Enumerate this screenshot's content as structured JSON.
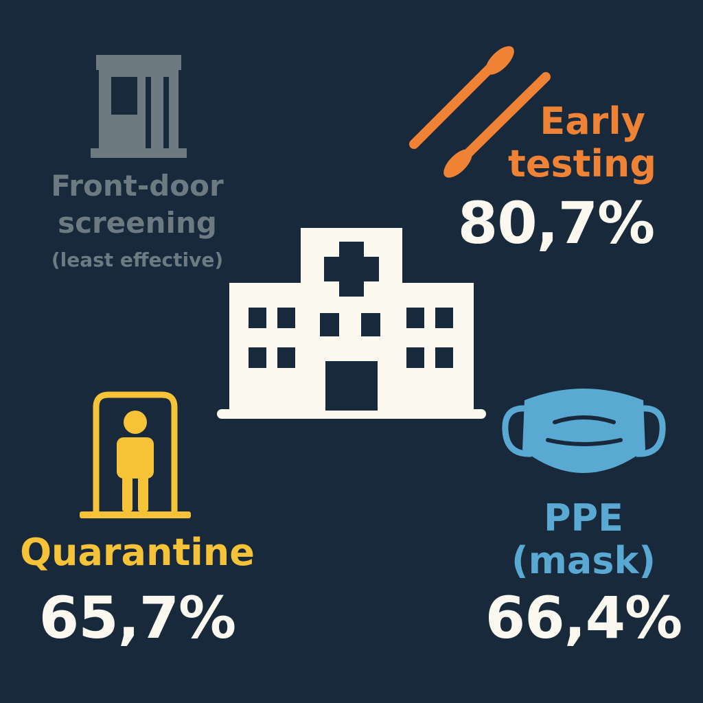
{
  "front_door": {
    "label_line1": "Front-door",
    "label_line2": "screening",
    "note": "(least effective)",
    "icon": "door-icon",
    "color": "#6d7a82"
  },
  "early_testing": {
    "label_line1": "Early",
    "label_line2": "testing",
    "value": "80,7%",
    "icon": "swab-icon",
    "color": "#f08236"
  },
  "quarantine": {
    "label": "Quarantine",
    "value": "65,7%",
    "icon": "quarantine-booth-icon",
    "color": "#f5c238"
  },
  "ppe": {
    "label_line1": "PPE",
    "label_line2": "(mask)",
    "value": "66,4%",
    "icon": "mask-icon",
    "color": "#5aa9d3"
  },
  "center": {
    "icon": "hospital-icon",
    "color": "#fbf8ef"
  },
  "background": "#17293a"
}
